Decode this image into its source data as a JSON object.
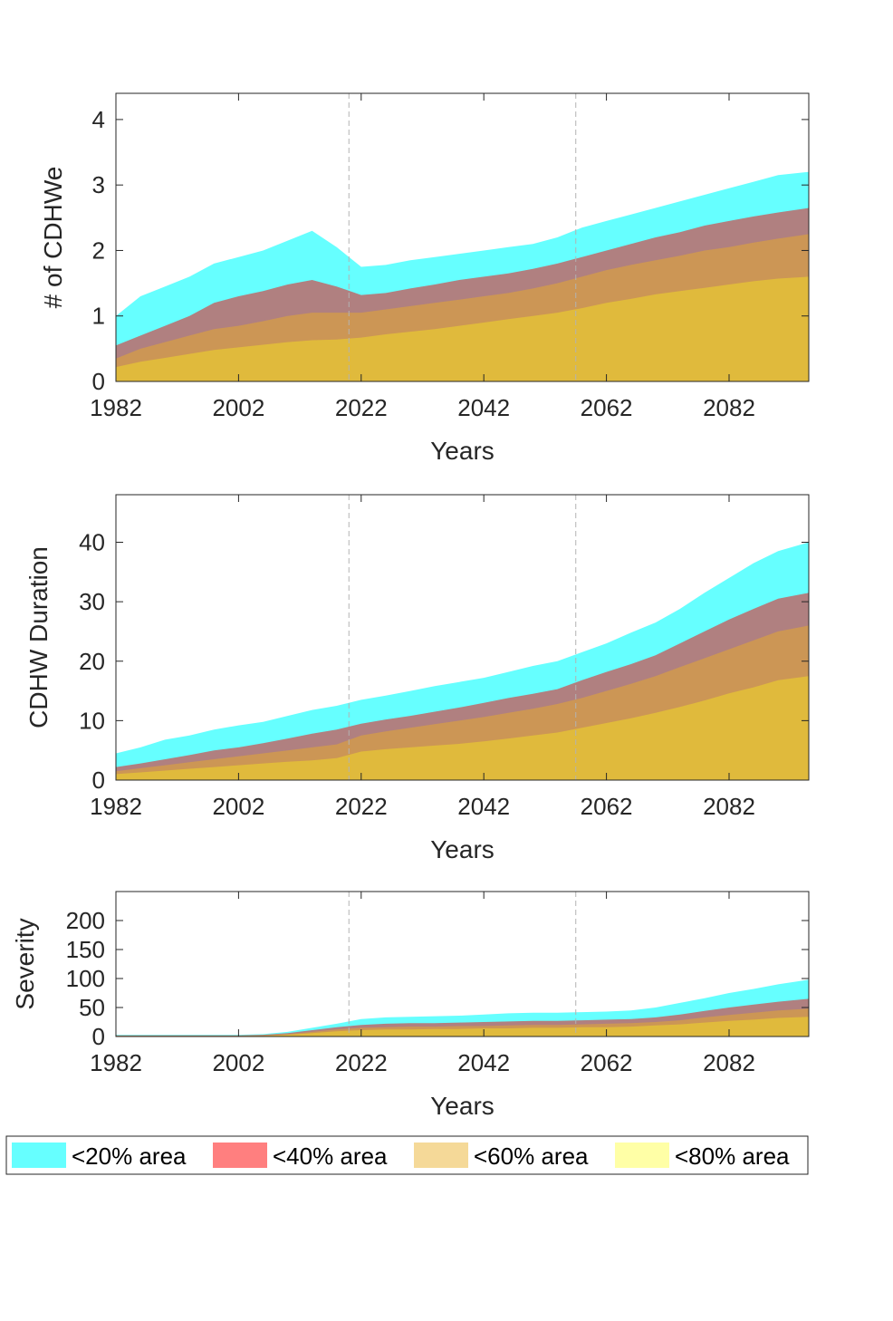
{
  "chart_data": [
    {
      "type": "area",
      "xlabel": "Years",
      "ylabel": "# of CDHWe",
      "xlim": [
        1982,
        2095
      ],
      "ylim": [
        0,
        4.4
      ],
      "xticks": [
        1982,
        2002,
        2022,
        2042,
        2062,
        2082
      ],
      "yticks": [
        0,
        1,
        2,
        3,
        4
      ],
      "vlines": [
        2020,
        2057
      ],
      "x": [
        1982,
        1986,
        1990,
        1994,
        1998,
        2002,
        2006,
        2010,
        2014,
        2018,
        2022,
        2026,
        2030,
        2034,
        2038,
        2042,
        2046,
        2050,
        2054,
        2058,
        2062,
        2066,
        2070,
        2074,
        2078,
        2082,
        2086,
        2090,
        2095
      ],
      "series": [
        {
          "name": "<20% area",
          "values": [
            1.0,
            1.3,
            1.45,
            1.6,
            1.8,
            1.9,
            2.0,
            2.15,
            2.3,
            2.05,
            1.75,
            1.78,
            1.85,
            1.9,
            1.95,
            2.0,
            2.05,
            2.1,
            2.2,
            2.35,
            2.45,
            2.55,
            2.65,
            2.75,
            2.85,
            2.95,
            3.05,
            3.15,
            3.2
          ]
        },
        {
          "name": "<40% area",
          "values": [
            0.55,
            0.7,
            0.85,
            1.0,
            1.2,
            1.3,
            1.38,
            1.48,
            1.55,
            1.45,
            1.32,
            1.35,
            1.42,
            1.48,
            1.55,
            1.6,
            1.65,
            1.72,
            1.8,
            1.9,
            2.0,
            2.1,
            2.2,
            2.28,
            2.38,
            2.45,
            2.52,
            2.58,
            2.65
          ]
        },
        {
          "name": "<60% area",
          "values": [
            0.35,
            0.5,
            0.6,
            0.7,
            0.8,
            0.85,
            0.92,
            1.0,
            1.05,
            1.05,
            1.05,
            1.1,
            1.15,
            1.2,
            1.25,
            1.3,
            1.35,
            1.42,
            1.5,
            1.6,
            1.7,
            1.78,
            1.85,
            1.92,
            2.0,
            2.05,
            2.12,
            2.18,
            2.25
          ]
        },
        {
          "name": "<80% area",
          "values": [
            0.22,
            0.3,
            0.36,
            0.42,
            0.48,
            0.52,
            0.56,
            0.6,
            0.63,
            0.64,
            0.67,
            0.72,
            0.76,
            0.8,
            0.85,
            0.9,
            0.95,
            1.0,
            1.05,
            1.12,
            1.2,
            1.26,
            1.33,
            1.38,
            1.43,
            1.48,
            1.53,
            1.57,
            1.6
          ]
        }
      ]
    },
    {
      "type": "area",
      "xlabel": "Years",
      "ylabel": "CDHW Duration",
      "xlim": [
        1982,
        2095
      ],
      "ylim": [
        0,
        48
      ],
      "xticks": [
        1982,
        2002,
        2022,
        2042,
        2062,
        2082
      ],
      "yticks": [
        0,
        10,
        20,
        30,
        40
      ],
      "vlines": [
        2020,
        2057
      ],
      "x": [
        1982,
        1986,
        1990,
        1994,
        1998,
        2002,
        2006,
        2010,
        2014,
        2018,
        2022,
        2026,
        2030,
        2034,
        2038,
        2042,
        2046,
        2050,
        2054,
        2058,
        2062,
        2066,
        2070,
        2074,
        2078,
        2082,
        2086,
        2090,
        2095
      ],
      "series": [
        {
          "name": "<20% area",
          "values": [
            4.5,
            5.5,
            6.8,
            7.5,
            8.5,
            9.2,
            9.8,
            10.8,
            11.8,
            12.5,
            13.5,
            14.2,
            15.0,
            15.8,
            16.5,
            17.2,
            18.2,
            19.2,
            20.0,
            21.5,
            23.0,
            24.8,
            26.5,
            28.8,
            31.5,
            34.0,
            36.5,
            38.5,
            40.0
          ]
        },
        {
          "name": "<40% area",
          "values": [
            2.2,
            2.8,
            3.5,
            4.2,
            5.0,
            5.5,
            6.2,
            7.0,
            7.8,
            8.5,
            9.5,
            10.2,
            10.8,
            11.5,
            12.2,
            13.0,
            13.8,
            14.5,
            15.3,
            16.8,
            18.2,
            19.5,
            21.0,
            23.0,
            25.0,
            27.0,
            28.8,
            30.5,
            31.5
          ]
        },
        {
          "name": "<60% area",
          "values": [
            1.5,
            2.0,
            2.5,
            3.0,
            3.5,
            4.0,
            4.5,
            5.0,
            5.5,
            6.0,
            7.5,
            8.2,
            8.8,
            9.4,
            10.0,
            10.6,
            11.3,
            12.0,
            12.8,
            13.8,
            15.0,
            16.2,
            17.5,
            19.0,
            20.5,
            22.0,
            23.5,
            25.0,
            26.0
          ]
        },
        {
          "name": "<80% area",
          "values": [
            1.0,
            1.3,
            1.6,
            1.9,
            2.2,
            2.5,
            2.8,
            3.1,
            3.3,
            3.7,
            4.8,
            5.2,
            5.5,
            5.8,
            6.1,
            6.5,
            7.0,
            7.5,
            8.0,
            8.8,
            9.6,
            10.4,
            11.3,
            12.3,
            13.4,
            14.6,
            15.6,
            16.8,
            17.5
          ]
        }
      ]
    },
    {
      "type": "area",
      "xlabel": "Years",
      "ylabel": "Severity",
      "xlim": [
        1982,
        2095
      ],
      "ylim": [
        0,
        250
      ],
      "xticks": [
        1982,
        2002,
        2022,
        2042,
        2062,
        2082
      ],
      "yticks": [
        0,
        50,
        100,
        150,
        200
      ],
      "vlines": [
        2020,
        2057
      ],
      "x": [
        1982,
        1986,
        1990,
        1994,
        1998,
        2002,
        2006,
        2010,
        2014,
        2018,
        2022,
        2026,
        2030,
        2034,
        2038,
        2042,
        2046,
        2050,
        2054,
        2058,
        2062,
        2066,
        2070,
        2074,
        2078,
        2082,
        2086,
        2090,
        2095
      ],
      "series": [
        {
          "name": "<20% area",
          "values": [
            3,
            3,
            3,
            3,
            3,
            3,
            4,
            8,
            15,
            22,
            30,
            33,
            34,
            35,
            36,
            38,
            40,
            41,
            41,
            42,
            43,
            45,
            50,
            58,
            66,
            75,
            82,
            90,
            98
          ]
        },
        {
          "name": "<40% area",
          "values": [
            2,
            2,
            2,
            2,
            2,
            2,
            3,
            6,
            11,
            16,
            20,
            22,
            23,
            23,
            24,
            25,
            26,
            27,
            27,
            28,
            29,
            30,
            33,
            38,
            44,
            50,
            55,
            60,
            65
          ]
        },
        {
          "name": "<60% area",
          "values": [
            1,
            1,
            1,
            1,
            1,
            1,
            2,
            4,
            8,
            12,
            15,
            16,
            17,
            17,
            18,
            18,
            19,
            20,
            20,
            21,
            22,
            23,
            25,
            28,
            33,
            37,
            41,
            45,
            48
          ]
        },
        {
          "name": "<80% area",
          "values": [
            1,
            1,
            1,
            1,
            1,
            1,
            1,
            3,
            6,
            9,
            11,
            12,
            12,
            13,
            13,
            14,
            14,
            15,
            15,
            16,
            16,
            17,
            19,
            21,
            24,
            27,
            29,
            32,
            34
          ]
        }
      ]
    }
  ],
  "legend": {
    "items": [
      {
        "label": "<20% area",
        "color": "#66ffff"
      },
      {
        "label": "<40% area",
        "color": "#ff7f7f"
      },
      {
        "label": "<60% area",
        "color": "#f5d998"
      },
      {
        "label": "<80% area",
        "color": "#ffffa6"
      }
    ]
  },
  "colors": {
    "fills": [
      "#66ffff",
      "#b08080",
      "#cc9655",
      "#e0ba3c"
    ],
    "axis": "#262626",
    "vline": "#b3b3b3"
  }
}
